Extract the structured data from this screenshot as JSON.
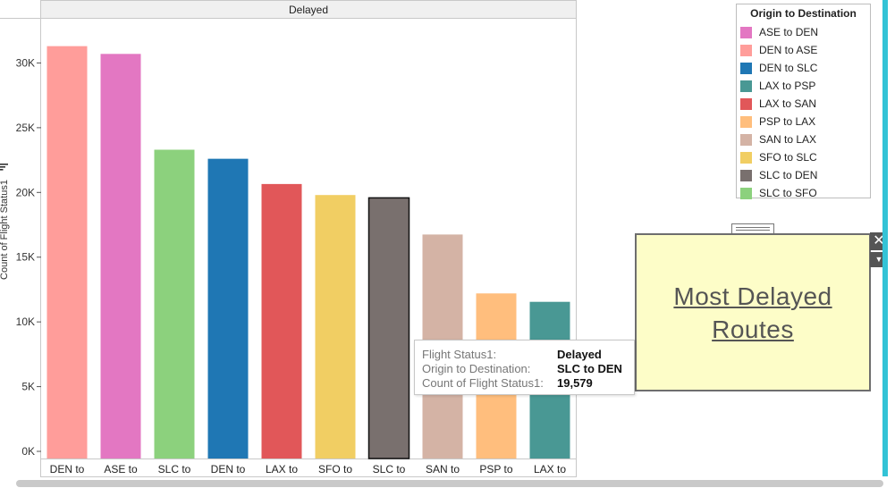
{
  "column_header": "Delayed",
  "y_axis_title": "Count of Flight Status1",
  "chart_data": {
    "type": "bar",
    "panel": "Delayed",
    "categories": [
      "DEN to",
      "ASE to",
      "SLC to",
      "DEN to",
      "LAX to",
      "SFO to",
      "SLC to",
      "SAN to",
      "PSP to",
      "LAX to"
    ],
    "routes": [
      "DEN to ASE",
      "ASE to DEN",
      "SLC to SFO",
      "DEN to SLC",
      "LAX to SAN",
      "SFO to SLC",
      "SLC to DEN",
      "SAN to LAX",
      "PSP to LAX",
      "LAX to PSP"
    ],
    "values": [
      31300,
      30700,
      23300,
      22600,
      20650,
      19800,
      19579,
      16750,
      12200,
      11550
    ],
    "colors": [
      "#ff9d9a",
      "#e377c2",
      "#8cd17d",
      "#1f77b4",
      "#e15759",
      "#f1ce63",
      "#79706e",
      "#d4b3a5",
      "#ffbe7d",
      "#499894"
    ],
    "ylabel": "Count of Flight Status1",
    "ylim": [
      0,
      33000
    ],
    "y_ticks": [
      0,
      5000,
      10000,
      15000,
      20000,
      25000,
      30000
    ],
    "y_tick_labels": [
      "0K",
      "5K",
      "10K",
      "15K",
      "20K",
      "25K",
      "30K"
    ],
    "grid": false,
    "highlighted_index": 6
  },
  "legend": {
    "title": "Origin to Destination",
    "items": [
      {
        "label": "ASE to DEN",
        "color": "#e377c2"
      },
      {
        "label": "DEN to ASE",
        "color": "#ff9d9a"
      },
      {
        "label": "DEN to SLC",
        "color": "#1f77b4"
      },
      {
        "label": "LAX to PSP",
        "color": "#499894"
      },
      {
        "label": "LAX to SAN",
        "color": "#e15759"
      },
      {
        "label": "PSP to LAX",
        "color": "#ffbe7d"
      },
      {
        "label": "SAN to LAX",
        "color": "#d4b3a5"
      },
      {
        "label": "SFO to SLC",
        "color": "#f1ce63"
      },
      {
        "label": "SLC to DEN",
        "color": "#79706e"
      },
      {
        "label": "SLC to SFO",
        "color": "#8cd17d"
      }
    ]
  },
  "tooltip": {
    "rows": [
      {
        "label": "Flight Status1:",
        "value": "Delayed"
      },
      {
        "label": "Origin to Destination:",
        "value": "SLC to DEN"
      },
      {
        "label": "Count of Flight Status1:",
        "value": "19,579"
      }
    ]
  },
  "annotation": {
    "text": "Most Delayed Routes",
    "close_glyph": "✕",
    "menu_glyph": "▼"
  }
}
